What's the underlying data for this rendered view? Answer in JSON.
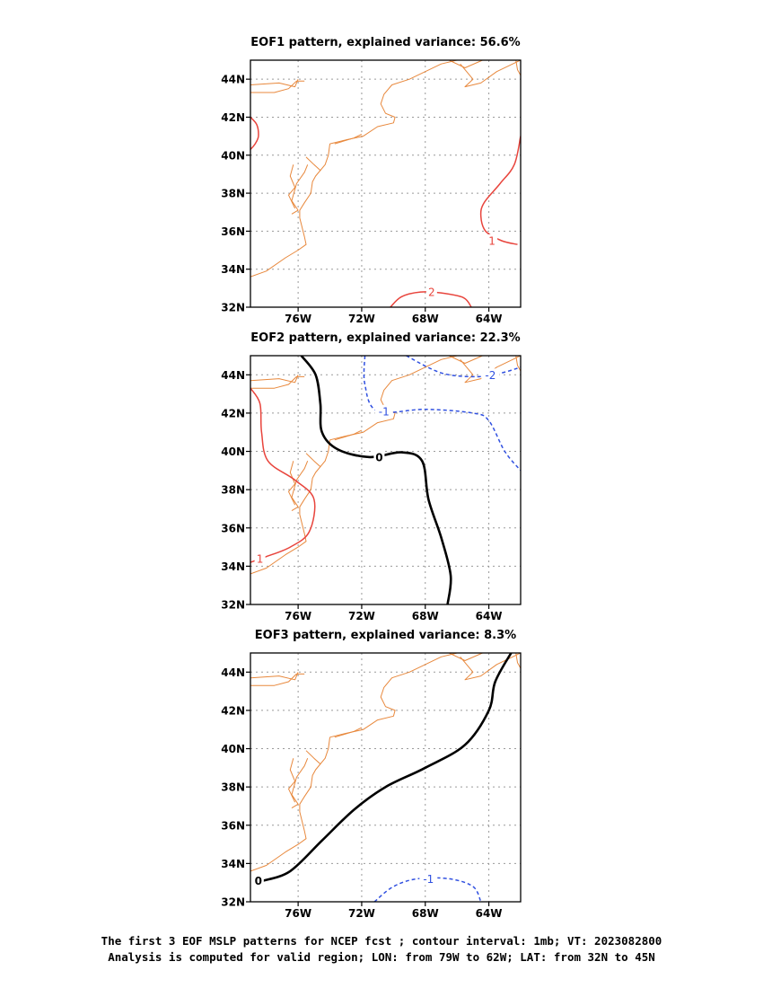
{
  "chart_data": [
    {
      "type": "contour_map",
      "title": "EOF1 pattern, explained variance: 56.6%",
      "xlim": [
        -79,
        -62
      ],
      "ylim": [
        32,
        45
      ],
      "xticks": [
        {
          "v": -76,
          "label": "76W"
        },
        {
          "v": -72,
          "label": "72W"
        },
        {
          "v": -68,
          "label": "68W"
        },
        {
          "v": -64,
          "label": "64W"
        }
      ],
      "yticks": [
        {
          "v": 32,
          "label": "32N"
        },
        {
          "v": 34,
          "label": "34N"
        },
        {
          "v": 36,
          "label": "36N"
        },
        {
          "v": 38,
          "label": "38N"
        },
        {
          "v": 40,
          "label": "40N"
        },
        {
          "v": 42,
          "label": "42N"
        },
        {
          "v": 44,
          "label": "44N"
        }
      ],
      "contours": [
        {
          "level": "1",
          "color": "#e8443c",
          "dash": false,
          "points": [
            [
              -79,
              42.0
            ],
            [
              -78.6,
              41.6
            ],
            [
              -78.5,
              41.0
            ],
            [
              -78.7,
              40.6
            ],
            [
              -79,
              40.3
            ]
          ]
        },
        {
          "level": "1",
          "color": "#e8443c",
          "dash": false,
          "label_at": [
            -63.8,
            35.5
          ],
          "points": [
            [
              -62,
              41.0
            ],
            [
              -62.4,
              39.5
            ],
            [
              -63.3,
              38.5
            ],
            [
              -64.3,
              37.5
            ],
            [
              -64.5,
              36.8
            ],
            [
              -64.2,
              36.0
            ],
            [
              -63.2,
              35.5
            ],
            [
              -62.2,
              35.3
            ]
          ]
        },
        {
          "level": "2",
          "color": "#e8443c",
          "dash": false,
          "label_at": [
            -67.6,
            32.8
          ],
          "points": [
            [
              -70.2,
              32.0
            ],
            [
              -69.5,
              32.55
            ],
            [
              -68.3,
              32.8
            ],
            [
              -67,
              32.75
            ],
            [
              -65.6,
              32.5
            ],
            [
              -65.1,
              32.0
            ]
          ]
        }
      ]
    },
    {
      "type": "contour_map",
      "title": "EOF2 pattern, explained variance: 22.3%",
      "xlim": [
        -79,
        -62
      ],
      "ylim": [
        32,
        45
      ],
      "xticks": [
        {
          "v": -76,
          "label": "76W"
        },
        {
          "v": -72,
          "label": "72W"
        },
        {
          "v": -68,
          "label": "68W"
        },
        {
          "v": -64,
          "label": "64W"
        }
      ],
      "yticks": [
        {
          "v": 32,
          "label": "32N"
        },
        {
          "v": 34,
          "label": "34N"
        },
        {
          "v": 36,
          "label": "36N"
        },
        {
          "v": 38,
          "label": "38N"
        },
        {
          "v": 40,
          "label": "40N"
        },
        {
          "v": 42,
          "label": "42N"
        },
        {
          "v": 44,
          "label": "44N"
        }
      ],
      "contours": [
        {
          "level": "0",
          "color": "#000000",
          "dash": false,
          "bold": true,
          "label_at": [
            -70.9,
            39.7
          ],
          "points": [
            [
              -75.8,
              45.0
            ],
            [
              -74.9,
              44.0
            ],
            [
              -74.6,
              42.5
            ],
            [
              -74.5,
              41.0
            ],
            [
              -73.5,
              40.1
            ],
            [
              -71.5,
              39.7
            ],
            [
              -69.5,
              39.95
            ],
            [
              -68.2,
              39.5
            ],
            [
              -67.8,
              37.5
            ],
            [
              -67.0,
              35.5
            ],
            [
              -66.4,
              33.5
            ],
            [
              -66.6,
              32.0
            ]
          ]
        },
        {
          "level": "1",
          "color": "#e8443c",
          "dash": false,
          "label_at": [
            -78.4,
            34.4
          ],
          "points": [
            [
              -79,
              43.3
            ],
            [
              -78.4,
              42.5
            ],
            [
              -78.3,
              41.0
            ],
            [
              -77.9,
              39.5
            ],
            [
              -76.2,
              38.5
            ],
            [
              -75.0,
              37.5
            ],
            [
              -75.3,
              35.8
            ],
            [
              -76.5,
              35.0
            ],
            [
              -78.0,
              34.5
            ],
            [
              -79,
              34.2
            ]
          ]
        },
        {
          "level": "-1",
          "color": "#3050e0",
          "dash": true,
          "label_at": [
            -70.6,
            42.1
          ],
          "points": [
            [
              -71.8,
              45.0
            ],
            [
              -71.8,
              43.5
            ],
            [
              -71.0,
              42.1
            ],
            [
              -68.0,
              42.2
            ],
            [
              -65.0,
              42.0
            ],
            [
              -64.0,
              41.6
            ],
            [
              -63.0,
              40.0
            ],
            [
              -62.0,
              39.0
            ]
          ]
        },
        {
          "level": "-2",
          "color": "#3050e0",
          "dash": true,
          "label_at": [
            -63.9,
            44.0
          ],
          "points": [
            [
              -69.2,
              45.0
            ],
            [
              -67.0,
              44.1
            ],
            [
              -64.8,
              43.9
            ],
            [
              -63.2,
              44.1
            ],
            [
              -62.0,
              44.4
            ]
          ]
        }
      ]
    },
    {
      "type": "contour_map",
      "title": "EOF3 pattern, explained variance: 8.3%",
      "xlim": [
        -79,
        -62
      ],
      "ylim": [
        32,
        45
      ],
      "xticks": [
        {
          "v": -76,
          "label": "76W"
        },
        {
          "v": -72,
          "label": "72W"
        },
        {
          "v": -68,
          "label": "68W"
        },
        {
          "v": -64,
          "label": "64W"
        }
      ],
      "yticks": [
        {
          "v": 32,
          "label": "32N"
        },
        {
          "v": 34,
          "label": "34N"
        },
        {
          "v": 36,
          "label": "36N"
        },
        {
          "v": 38,
          "label": "38N"
        },
        {
          "v": 40,
          "label": "40N"
        },
        {
          "v": 42,
          "label": "42N"
        },
        {
          "v": 44,
          "label": "44N"
        }
      ],
      "contours": [
        {
          "level": "0",
          "color": "#000000",
          "dash": false,
          "bold": true,
          "label_at": [
            -78.5,
            33.1
          ],
          "points": [
            [
              -78.2,
              33.1
            ],
            [
              -76.5,
              33.6
            ],
            [
              -74.5,
              35.2
            ],
            [
              -72.5,
              36.8
            ],
            [
              -70.5,
              38.0
            ],
            [
              -68.0,
              39.0
            ],
            [
              -65.5,
              40.2
            ],
            [
              -64.0,
              42.0
            ],
            [
              -63.6,
              43.5
            ],
            [
              -62.6,
              45.0
            ]
          ]
        },
        {
          "level": "-1",
          "color": "#3050e0",
          "dash": true,
          "label_at": [
            -67.8,
            33.2
          ],
          "points": [
            [
              -71.2,
              32.0
            ],
            [
              -70.0,
              32.8
            ],
            [
              -68.5,
              33.2
            ],
            [
              -66.5,
              33.2
            ],
            [
              -65.0,
              32.8
            ],
            [
              -64.5,
              32.0
            ]
          ]
        }
      ]
    }
  ],
  "coastline": [
    [
      [
        -79,
        43.7
      ],
      [
        -77.2,
        43.8
      ],
      [
        -76.2,
        43.6
      ],
      [
        -76.0,
        44.0
      ]
    ],
    [
      [
        -79,
        43.3
      ],
      [
        -77.5,
        43.3
      ],
      [
        -76.6,
        43.5
      ],
      [
        -76.1,
        43.9
      ],
      [
        -75.6,
        43.9
      ]
    ],
    [
      [
        -74.0,
        40.6
      ],
      [
        -73.0,
        40.8
      ],
      [
        -71.9,
        41.0
      ],
      [
        -71.0,
        41.5
      ],
      [
        -70.0,
        41.7
      ],
      [
        -69.9,
        42.0
      ],
      [
        -70.5,
        42.2
      ],
      [
        -70.8,
        42.7
      ],
      [
        -70.6,
        43.2
      ],
      [
        -70.1,
        43.7
      ],
      [
        -69.0,
        44.0
      ],
      [
        -68.0,
        44.4
      ],
      [
        -67.0,
        44.8
      ],
      [
        -66.0,
        45.0
      ]
    ],
    [
      [
        -73.7,
        40.6
      ],
      [
        -72.5,
        40.9
      ],
      [
        -72.0,
        41.1
      ]
    ],
    [
      [
        -74.0,
        40.6
      ],
      [
        -74.1,
        40.0
      ],
      [
        -74.3,
        39.5
      ],
      [
        -74.9,
        38.9
      ],
      [
        -75.1,
        38.6
      ],
      [
        -75.2,
        38.0
      ],
      [
        -75.6,
        37.5
      ],
      [
        -75.9,
        37.1
      ],
      [
        -75.9,
        36.7
      ],
      [
        -75.6,
        35.7
      ],
      [
        -75.5,
        35.3
      ],
      [
        -76.0,
        35.0
      ],
      [
        -76.8,
        34.6
      ],
      [
        -78.0,
        33.9
      ],
      [
        -79,
        33.6
      ]
    ],
    [
      [
        -75.4,
        39.5
      ],
      [
        -75.6,
        39.1
      ],
      [
        -76.1,
        38.5
      ],
      [
        -76.4,
        37.6
      ],
      [
        -76.0,
        37.1
      ],
      [
        -76.4,
        36.9
      ]
    ],
    [
      [
        -76.3,
        39.5
      ],
      [
        -76.5,
        38.9
      ],
      [
        -76.2,
        38.3
      ],
      [
        -76.6,
        37.9
      ],
      [
        -76.2,
        37.2
      ]
    ],
    [
      [
        -75.5,
        39.9
      ],
      [
        -75.0,
        39.5
      ],
      [
        -74.6,
        39.2
      ]
    ],
    [
      [
        -65.8,
        44.8
      ],
      [
        -65.0,
        44.0
      ],
      [
        -65.5,
        43.6
      ],
      [
        -64.5,
        43.8
      ],
      [
        -63.5,
        44.4
      ],
      [
        -62.5,
        44.8
      ],
      [
        -62.0,
        45.0
      ]
    ],
    [
      [
        -66.5,
        45.0
      ],
      [
        -65.5,
        44.6
      ],
      [
        -64.4,
        45.0
      ]
    ],
    [
      [
        -62.3,
        45.0
      ],
      [
        -62.2,
        44.5
      ],
      [
        -62.0,
        44.2
      ]
    ]
  ],
  "footer": {
    "line1": "The first 3 EOF MSLP patterns for NCEP fcst ; contour interval: 1mb; VT: 2023082800",
    "line2": "Analysis is computed for valid region; LON: from 79W to 62W; LAT: from 32N to 45N"
  }
}
